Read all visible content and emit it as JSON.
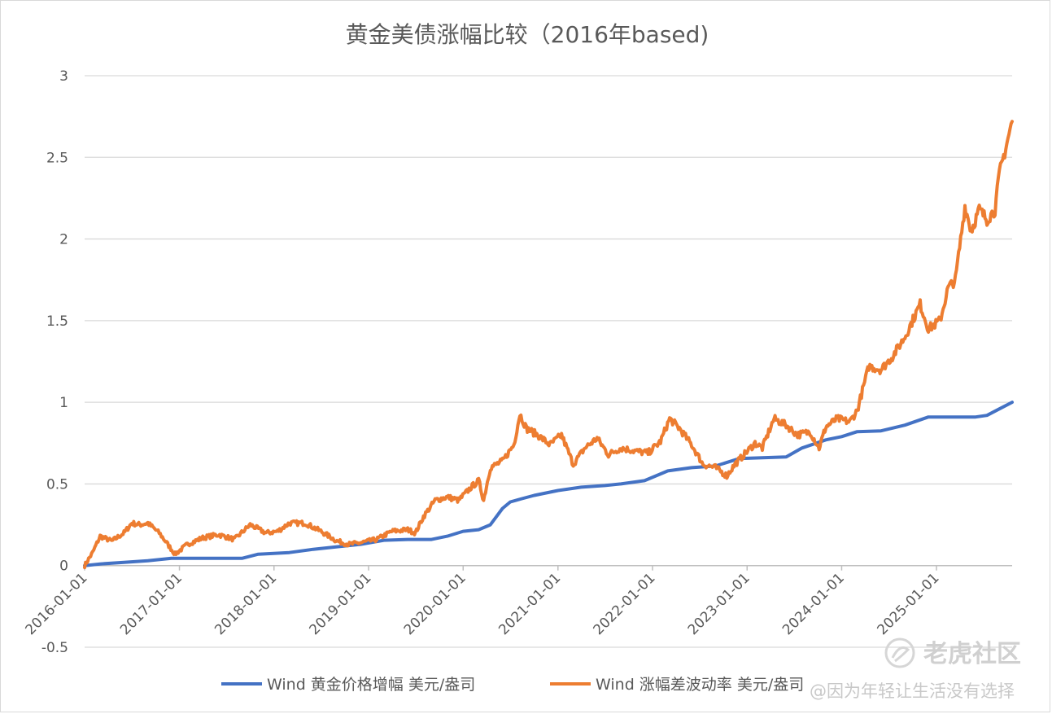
{
  "chart_data": {
    "type": "line",
    "title": "黄金美债涨幅比较（2016年based)",
    "xlabel": "",
    "ylabel": "",
    "ylim": [
      -0.5,
      3
    ],
    "yticks": [
      "-0.5",
      "0",
      "0.5",
      "1",
      "1.5",
      "2",
      "2.5",
      "3"
    ],
    "xlim": [
      "2016-01-01",
      "2025-10-20"
    ],
    "xticks": [
      "2016-01-01",
      "2017-01-01",
      "2018-01-01",
      "2019-01-01",
      "2020-01-01",
      "2021-01-01",
      "2022-01-01",
      "2023-01-01",
      "2024-01-01",
      "2025-01-01"
    ],
    "grid": "horizontal",
    "legend_position": "bottom",
    "series": [
      {
        "name": "Wind 黄金价格增幅 美元/盎司",
        "color": "#4472c4",
        "points": [
          [
            "2016-01-01",
            0.0
          ],
          [
            "2016-03-01",
            0.01
          ],
          [
            "2016-06-01",
            0.02
          ],
          [
            "2016-09-01",
            0.03
          ],
          [
            "2016-12-01",
            0.045
          ],
          [
            "2017-03-01",
            0.045
          ],
          [
            "2017-06-01",
            0.045
          ],
          [
            "2017-09-01",
            0.045
          ],
          [
            "2017-11-01",
            0.07
          ],
          [
            "2018-03-01",
            0.08
          ],
          [
            "2018-06-01",
            0.1
          ],
          [
            "2018-09-01",
            0.115
          ],
          [
            "2018-12-01",
            0.13
          ],
          [
            "2019-03-01",
            0.155
          ],
          [
            "2019-06-01",
            0.16
          ],
          [
            "2019-09-01",
            0.16
          ],
          [
            "2019-11-01",
            0.18
          ],
          [
            "2020-01-01",
            0.21
          ],
          [
            "2020-03-01",
            0.22
          ],
          [
            "2020-04-15",
            0.25
          ],
          [
            "2020-06-01",
            0.35
          ],
          [
            "2020-07-01",
            0.39
          ],
          [
            "2020-08-15",
            0.41
          ],
          [
            "2020-10-01",
            0.43
          ],
          [
            "2021-01-01",
            0.46
          ],
          [
            "2021-04-01",
            0.48
          ],
          [
            "2021-07-01",
            0.49
          ],
          [
            "2021-09-01",
            0.5
          ],
          [
            "2021-12-01",
            0.52
          ],
          [
            "2022-01-15",
            0.55
          ],
          [
            "2022-03-01",
            0.58
          ],
          [
            "2022-06-01",
            0.6
          ],
          [
            "2022-09-01",
            0.61
          ],
          [
            "2022-12-01",
            0.655
          ],
          [
            "2023-03-01",
            0.66
          ],
          [
            "2023-06-01",
            0.665
          ],
          [
            "2023-08-01",
            0.72
          ],
          [
            "2023-11-01",
            0.77
          ],
          [
            "2024-01-01",
            0.79
          ],
          [
            "2024-03-01",
            0.82
          ],
          [
            "2024-06-01",
            0.825
          ],
          [
            "2024-09-01",
            0.86
          ],
          [
            "2024-12-01",
            0.91
          ],
          [
            "2025-03-01",
            0.91
          ],
          [
            "2025-06-01",
            0.91
          ],
          [
            "2025-07-15",
            0.92
          ],
          [
            "2025-09-01",
            0.96
          ],
          [
            "2025-10-20",
            1.0
          ]
        ]
      },
      {
        "name": "Wind 涨幅差波动率 美元/盎司",
        "color": "#ed7d31",
        "points": [
          [
            "2016-01-01",
            0.0
          ],
          [
            "2016-02-01",
            0.08
          ],
          [
            "2016-03-01",
            0.18
          ],
          [
            "2016-04-15",
            0.15
          ],
          [
            "2016-06-01",
            0.2
          ],
          [
            "2016-07-01",
            0.26
          ],
          [
            "2016-08-01",
            0.25
          ],
          [
            "2016-09-01",
            0.26
          ],
          [
            "2016-10-15",
            0.2
          ],
          [
            "2016-12-15",
            0.07
          ],
          [
            "2017-02-01",
            0.13
          ],
          [
            "2017-04-01",
            0.17
          ],
          [
            "2017-06-01",
            0.19
          ],
          [
            "2017-08-01",
            0.16
          ],
          [
            "2017-10-01",
            0.25
          ],
          [
            "2017-12-01",
            0.2
          ],
          [
            "2018-01-15",
            0.21
          ],
          [
            "2018-03-01",
            0.26
          ],
          [
            "2018-05-01",
            0.26
          ],
          [
            "2018-07-01",
            0.21
          ],
          [
            "2018-09-01",
            0.15
          ],
          [
            "2018-10-15",
            0.13
          ],
          [
            "2018-12-01",
            0.14
          ],
          [
            "2019-02-01",
            0.16
          ],
          [
            "2019-04-01",
            0.21
          ],
          [
            "2019-06-01",
            0.22
          ],
          [
            "2019-07-01",
            0.2
          ],
          [
            "2019-08-01",
            0.3
          ],
          [
            "2019-09-15",
            0.4
          ],
          [
            "2019-11-01",
            0.42
          ],
          [
            "2019-12-15",
            0.4
          ],
          [
            "2020-02-01",
            0.48
          ],
          [
            "2020-03-01",
            0.52
          ],
          [
            "2020-03-20",
            0.4
          ],
          [
            "2020-04-15",
            0.6
          ],
          [
            "2020-06-01",
            0.64
          ],
          [
            "2020-07-15",
            0.74
          ],
          [
            "2020-08-07",
            0.93
          ],
          [
            "2020-09-01",
            0.84
          ],
          [
            "2020-10-15",
            0.8
          ],
          [
            "2020-12-01",
            0.74
          ],
          [
            "2021-01-15",
            0.8
          ],
          [
            "2021-03-01",
            0.62
          ],
          [
            "2021-04-15",
            0.72
          ],
          [
            "2021-06-01",
            0.78
          ],
          [
            "2021-07-15",
            0.68
          ],
          [
            "2021-09-01",
            0.72
          ],
          [
            "2021-11-01",
            0.7
          ],
          [
            "2021-12-15",
            0.69
          ],
          [
            "2022-02-01",
            0.76
          ],
          [
            "2022-03-08",
            0.9
          ],
          [
            "2022-04-15",
            0.84
          ],
          [
            "2022-06-01",
            0.74
          ],
          [
            "2022-07-15",
            0.62
          ],
          [
            "2022-09-01",
            0.6
          ],
          [
            "2022-10-15",
            0.55
          ],
          [
            "2022-11-15",
            0.62
          ],
          [
            "2022-12-15",
            0.67
          ],
          [
            "2023-02-01",
            0.75
          ],
          [
            "2023-03-01",
            0.72
          ],
          [
            "2023-04-15",
            0.9
          ],
          [
            "2023-06-01",
            0.86
          ],
          [
            "2023-07-15",
            0.8
          ],
          [
            "2023-09-01",
            0.82
          ],
          [
            "2023-10-06",
            0.72
          ],
          [
            "2023-11-01",
            0.85
          ],
          [
            "2023-12-15",
            0.9
          ],
          [
            "2024-02-01",
            0.88
          ],
          [
            "2024-03-01",
            0.95
          ],
          [
            "2024-04-15",
            1.22
          ],
          [
            "2024-06-01",
            1.2
          ],
          [
            "2024-07-15",
            1.28
          ],
          [
            "2024-09-01",
            1.4
          ],
          [
            "2024-10-30",
            1.6
          ],
          [
            "2024-12-01",
            1.45
          ],
          [
            "2025-01-15",
            1.5
          ],
          [
            "2025-02-15",
            1.7
          ],
          [
            "2025-03-15",
            1.75
          ],
          [
            "2025-04-21",
            2.2
          ],
          [
            "2025-05-15",
            2.05
          ],
          [
            "2025-06-15",
            2.18
          ],
          [
            "2025-07-15",
            2.12
          ],
          [
            "2025-08-15",
            2.18
          ],
          [
            "2025-09-01",
            2.4
          ],
          [
            "2025-10-20",
            2.72
          ]
        ]
      }
    ]
  },
  "watermark": {
    "logo_text": "老虎社区",
    "credit_text": "@因为年轻让生活没有选择"
  }
}
